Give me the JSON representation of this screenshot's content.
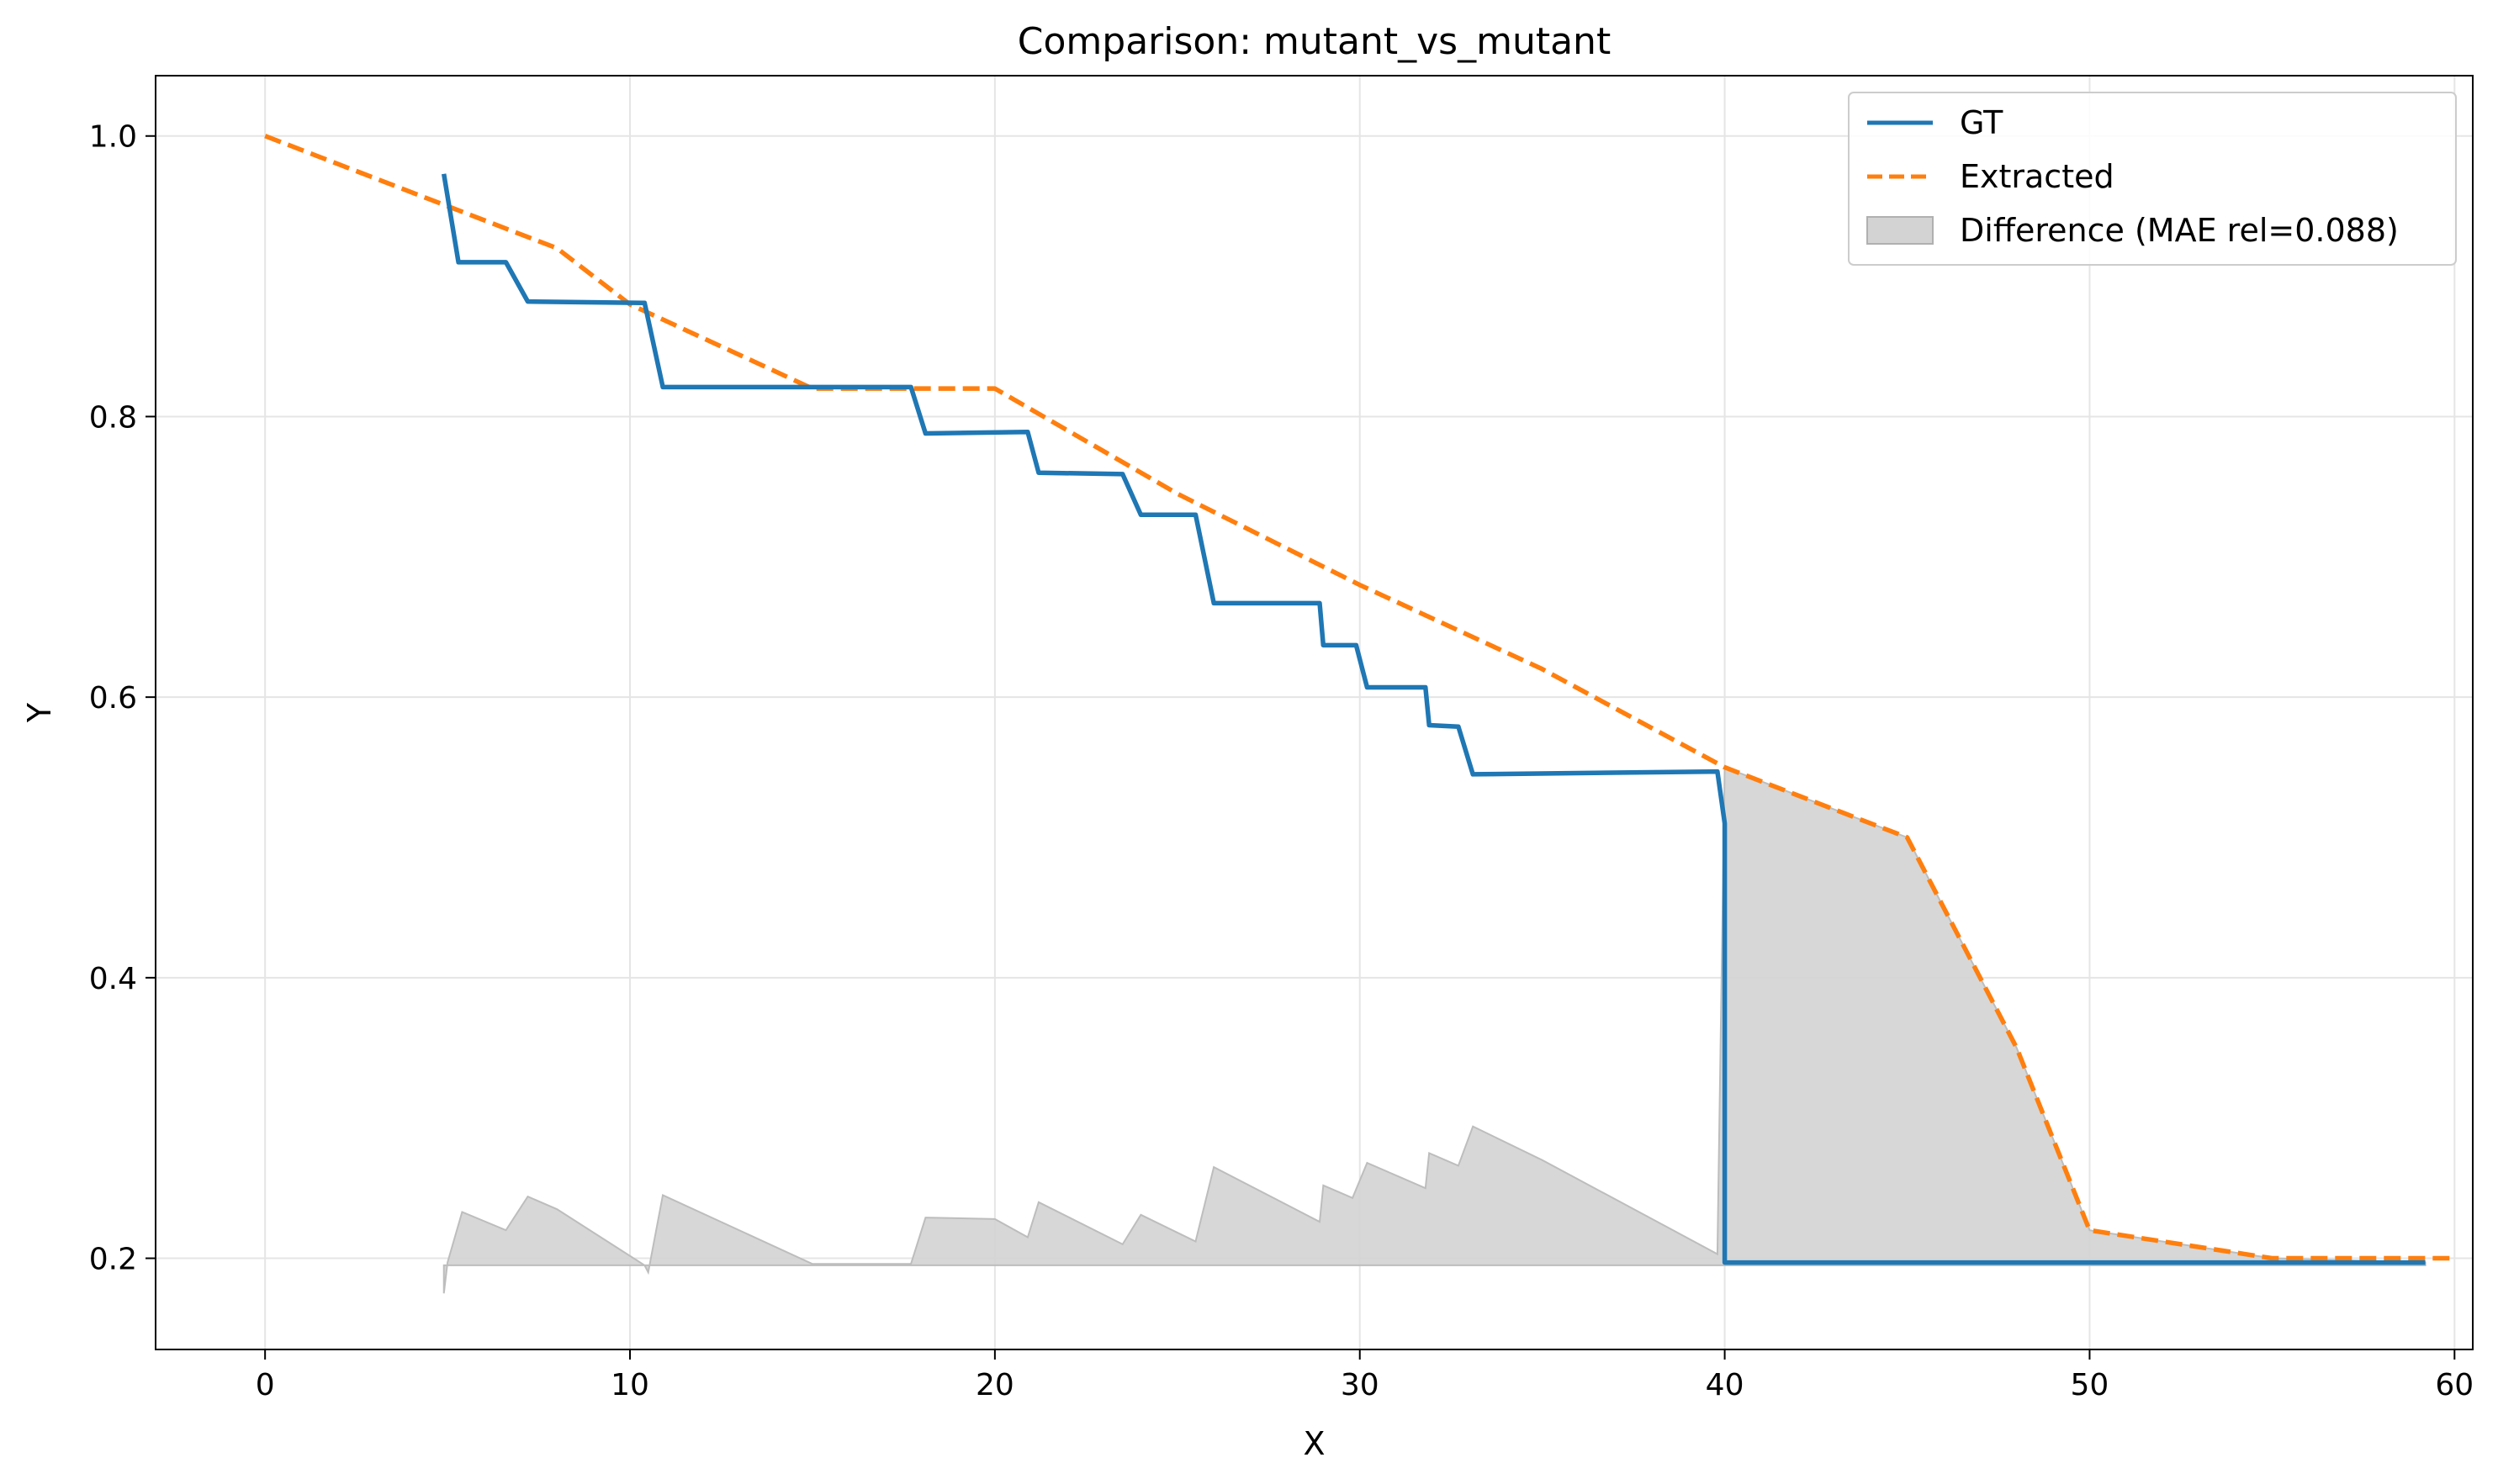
{
  "chart_data": {
    "type": "line",
    "title": "Comparison: mutant_vs_mutant",
    "xlabel": "X",
    "ylabel": "Y",
    "xlim": [
      -3,
      60.5
    ],
    "ylim": [
      0.135,
      1.043
    ],
    "xticks": [
      0,
      10,
      20,
      30,
      40,
      50,
      60
    ],
    "yticks": [
      0.2,
      0.4,
      0.6,
      0.8,
      1.0
    ],
    "xtick_labels": [
      "0",
      "10",
      "20",
      "30",
      "40",
      "50",
      "60"
    ],
    "ytick_labels": [
      "0.2",
      "0.4",
      "0.6",
      "0.8",
      "1.0"
    ],
    "grid": true,
    "legend_position": "top-right",
    "colors": {
      "gt": "#1f77b4",
      "extracted": "#ff7f0e",
      "difference": "#d3d3d3"
    },
    "series": [
      {
        "name": "GT",
        "style": "solid",
        "points": [
          [
            4.9,
            0.973
          ],
          [
            5.3,
            0.91
          ],
          [
            6.6,
            0.91
          ],
          [
            7.2,
            0.882
          ],
          [
            10.4,
            0.881
          ],
          [
            10.9,
            0.821
          ],
          [
            17.7,
            0.821
          ],
          [
            18.1,
            0.788
          ],
          [
            20.9,
            0.789
          ],
          [
            21.2,
            0.76
          ],
          [
            23.5,
            0.759
          ],
          [
            24.0,
            0.73
          ],
          [
            25.5,
            0.73
          ],
          [
            26.0,
            0.667
          ],
          [
            28.9,
            0.667
          ],
          [
            29.0,
            0.637
          ],
          [
            29.9,
            0.637
          ],
          [
            30.2,
            0.607
          ],
          [
            31.8,
            0.607
          ],
          [
            31.9,
            0.58
          ],
          [
            32.7,
            0.579
          ],
          [
            33.1,
            0.545
          ],
          [
            39.8,
            0.547
          ],
          [
            40.0,
            0.51
          ],
          [
            40.0,
            0.197
          ],
          [
            59.2,
            0.197
          ]
        ]
      },
      {
        "name": "Extracted",
        "style": "dashed",
        "points": [
          [
            0,
            1.0
          ],
          [
            5,
            0.95
          ],
          [
            8,
            0.92
          ],
          [
            10,
            0.88
          ],
          [
            15,
            0.82
          ],
          [
            20,
            0.82
          ],
          [
            25,
            0.745
          ],
          [
            30,
            0.68
          ],
          [
            35,
            0.62
          ],
          [
            40,
            0.55
          ],
          [
            45,
            0.5
          ],
          [
            48,
            0.35
          ],
          [
            50,
            0.22
          ],
          [
            55,
            0.2
          ],
          [
            60,
            0.2
          ]
        ]
      }
    ],
    "difference": {
      "name": "Difference (MAE rel=0.088)",
      "baseline": 0.195,
      "points": [
        [
          4.9,
          0.175
        ],
        [
          5.0,
          0.197
        ],
        [
          5.4,
          0.233
        ],
        [
          6.6,
          0.22
        ],
        [
          7.2,
          0.244
        ],
        [
          8.0,
          0.235
        ],
        [
          10.4,
          0.195
        ],
        [
          10.5,
          0.19
        ],
        [
          10.9,
          0.245
        ],
        [
          15.0,
          0.196
        ],
        [
          17.7,
          0.196
        ],
        [
          18.1,
          0.229
        ],
        [
          20.0,
          0.228
        ],
        [
          20.9,
          0.215
        ],
        [
          21.2,
          0.24
        ],
        [
          23.5,
          0.21
        ],
        [
          24.0,
          0.231
        ],
        [
          25.5,
          0.212
        ],
        [
          26.0,
          0.265
        ],
        [
          28.9,
          0.226
        ],
        [
          29.0,
          0.252
        ],
        [
          29.8,
          0.243
        ],
        [
          30.2,
          0.268
        ],
        [
          31.8,
          0.25
        ],
        [
          31.9,
          0.275
        ],
        [
          32.7,
          0.266
        ],
        [
          33.1,
          0.294
        ],
        [
          35.0,
          0.27
        ],
        [
          39.8,
          0.203
        ],
        [
          40.0,
          0.55
        ],
        [
          45,
          0.5
        ],
        [
          48,
          0.35
        ],
        [
          50,
          0.22
        ],
        [
          55,
          0.2
        ],
        [
          59.2,
          0.197
        ]
      ]
    }
  }
}
